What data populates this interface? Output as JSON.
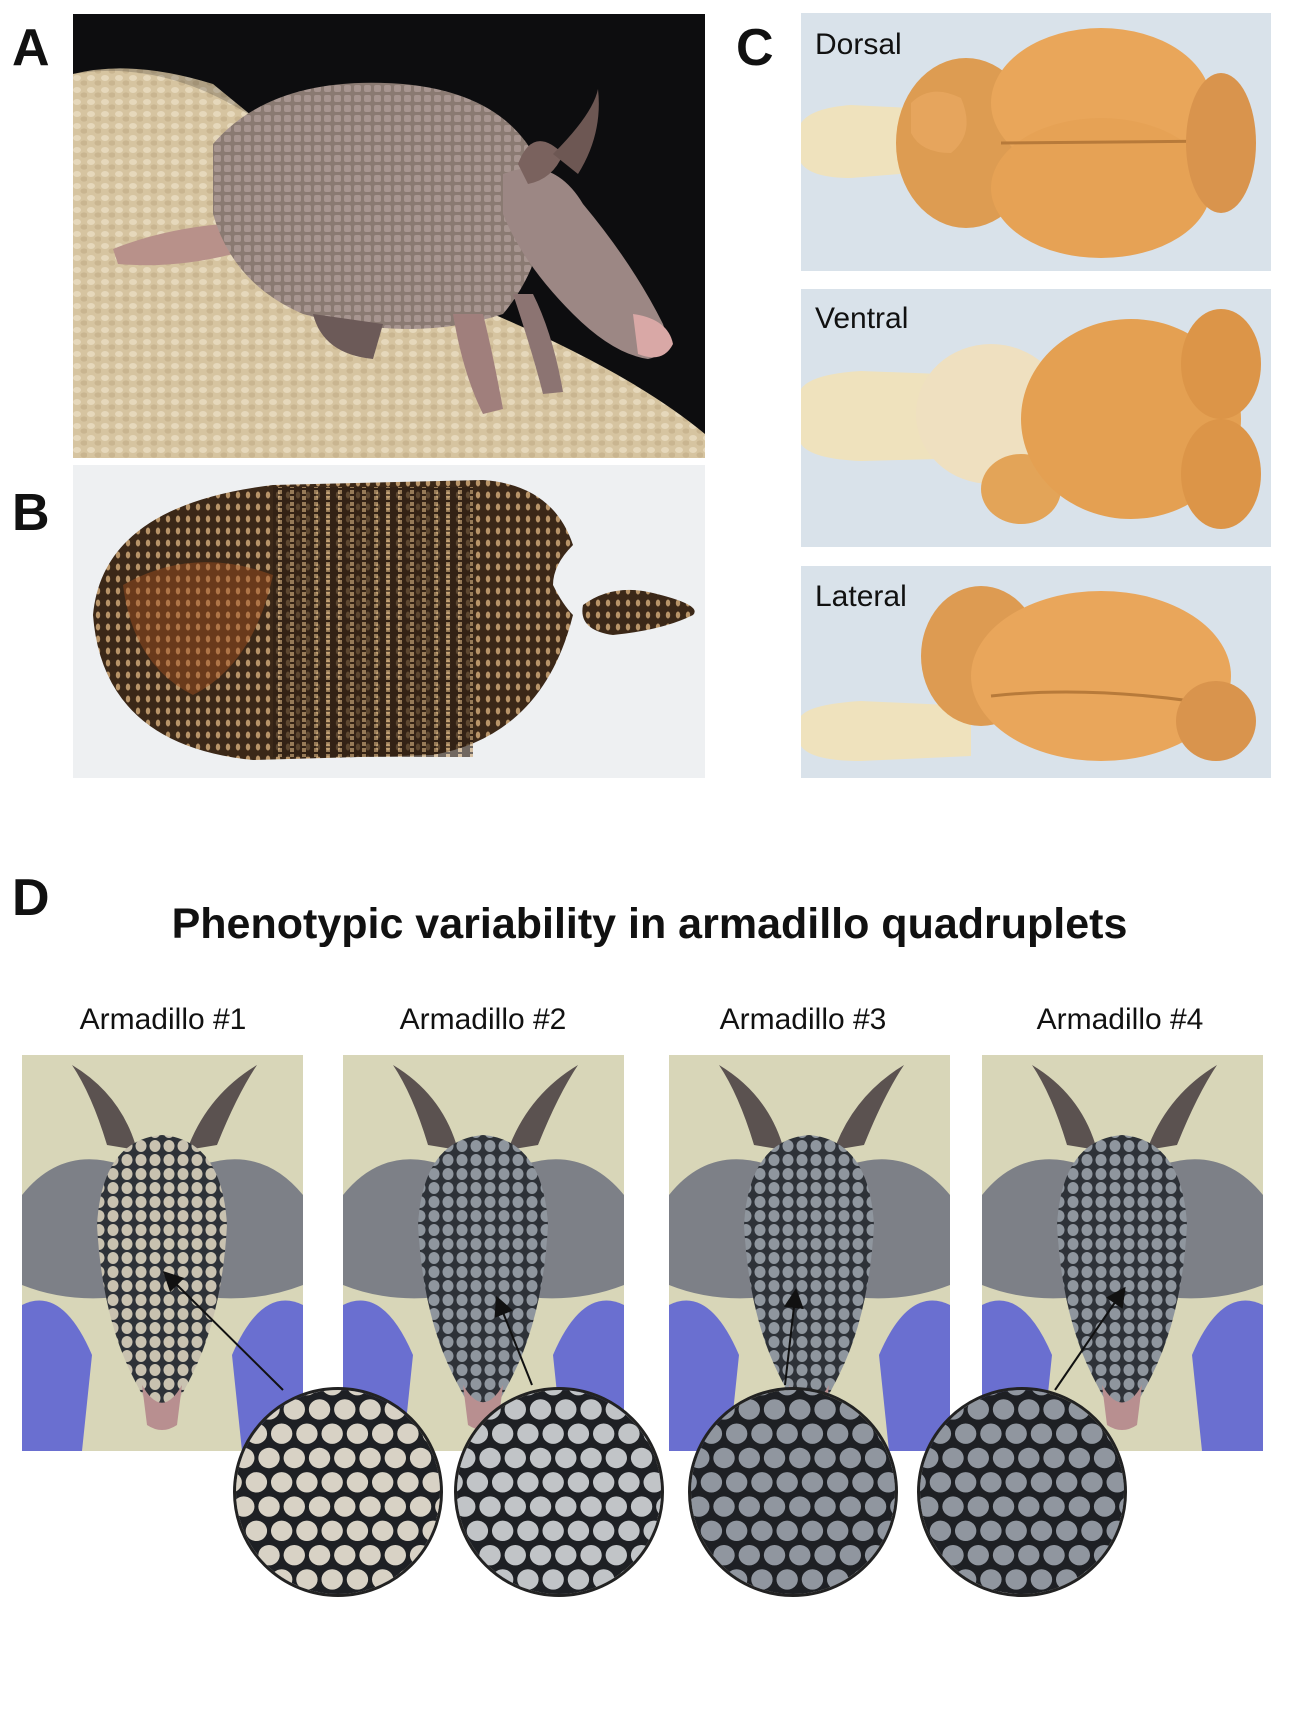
{
  "panels": {
    "a": {
      "letter": "A"
    },
    "b": {
      "letter": "B"
    },
    "c": {
      "letter": "C",
      "views": [
        "Dorsal",
        "Ventral",
        "Lateral"
      ]
    },
    "d": {
      "letter": "D",
      "title": "Phenotypic variability in armadillo quadruplets",
      "armadillos": [
        "Armadillo #1",
        "Armadillo #2",
        "Armadillo #3",
        "Armadillo #4"
      ]
    }
  },
  "icons": {
    "armadillo_photo": "armadillo-photo",
    "carapace_photo": "carapace-photo",
    "brain_photo": "brain-photo",
    "head_photo": "armadillo-head-photo",
    "zoom_circle": "scale-closeup-circle"
  },
  "colors": {
    "bedding": "#d8c7a3",
    "shell_brown": "#4a3422",
    "brain_orange": "#e0a458",
    "brainstem": "#efe0b8",
    "glove_blue": "#6a6fd0",
    "scale_gray": "#8b8f96"
  }
}
